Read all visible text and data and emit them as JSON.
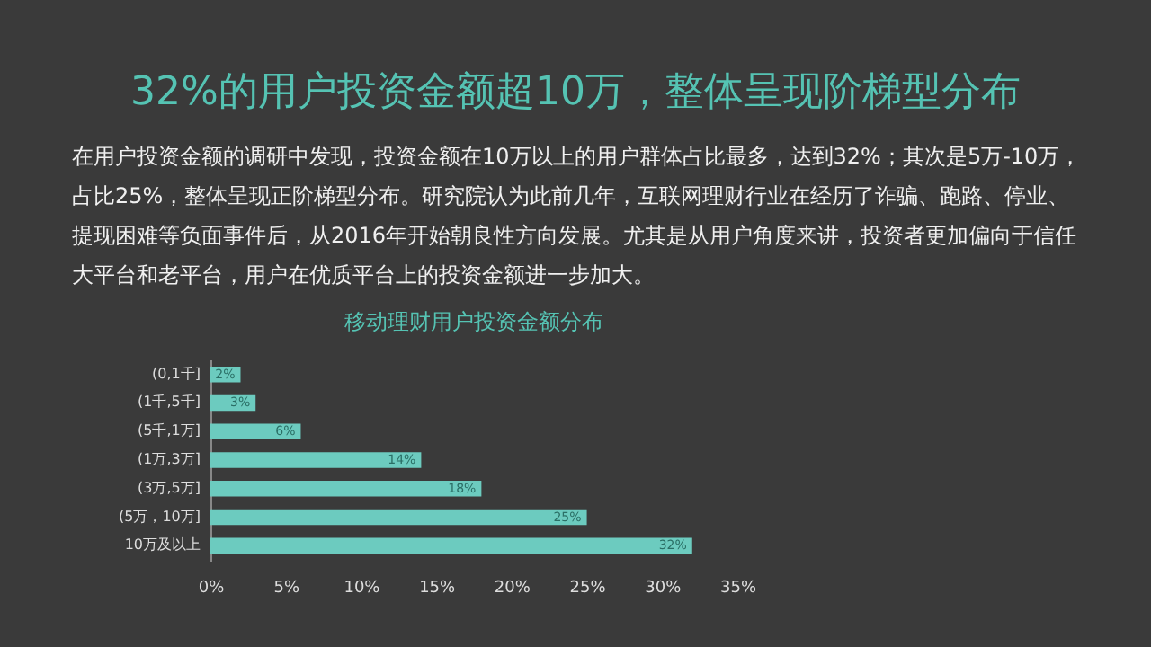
{
  "chart_data": {
    "type": "bar",
    "orientation": "horizontal",
    "title": "32%的用户投资金额超10万，整体呈现阶梯型分布",
    "subtitle": "移动理财用户投资金额分布",
    "annotations": [
      "在用户投资金额的调研中发现，投资金额在10万以上的用户群体占比最多，达到32%；其次是5万-10万，占比25%，整体呈现正阶梯型分布。研究院认为此前几年，互联网理财行业在经历了诈骗、跑路、停业、提现困难等负面事件后，从2016年开始朝良性方向发展。尤其是从用户角度来讲，投资者更加偏向于信任大平台和老平台，用户在优质平台上的投资金额进一步加大。"
    ],
    "categories": [
      "(0,1千]",
      "(1千,5千]",
      "(5千,1万]",
      "(1万,3万]",
      "(3万,5万]",
      "(5万，10万]",
      "10万及以上"
    ],
    "values": [
      2,
      3,
      6,
      14,
      18,
      25,
      32
    ],
    "value_labels": [
      "2%",
      "3%",
      "6%",
      "14%",
      "18%",
      "25%",
      "32%"
    ],
    "color": "#6ccbbf",
    "xlim": [
      0,
      35
    ],
    "xticks": [
      {
        "value": 0,
        "label": "0%"
      },
      {
        "value": 5,
        "label": "5%"
      },
      {
        "value": 10,
        "label": "10%"
      },
      {
        "value": 15,
        "label": "15%"
      },
      {
        "value": 20,
        "label": "20%"
      },
      {
        "value": 25,
        "label": "25%"
      },
      {
        "value": 30,
        "label": "30%"
      },
      {
        "value": 35,
        "label": "35%"
      }
    ],
    "grid": false
  }
}
